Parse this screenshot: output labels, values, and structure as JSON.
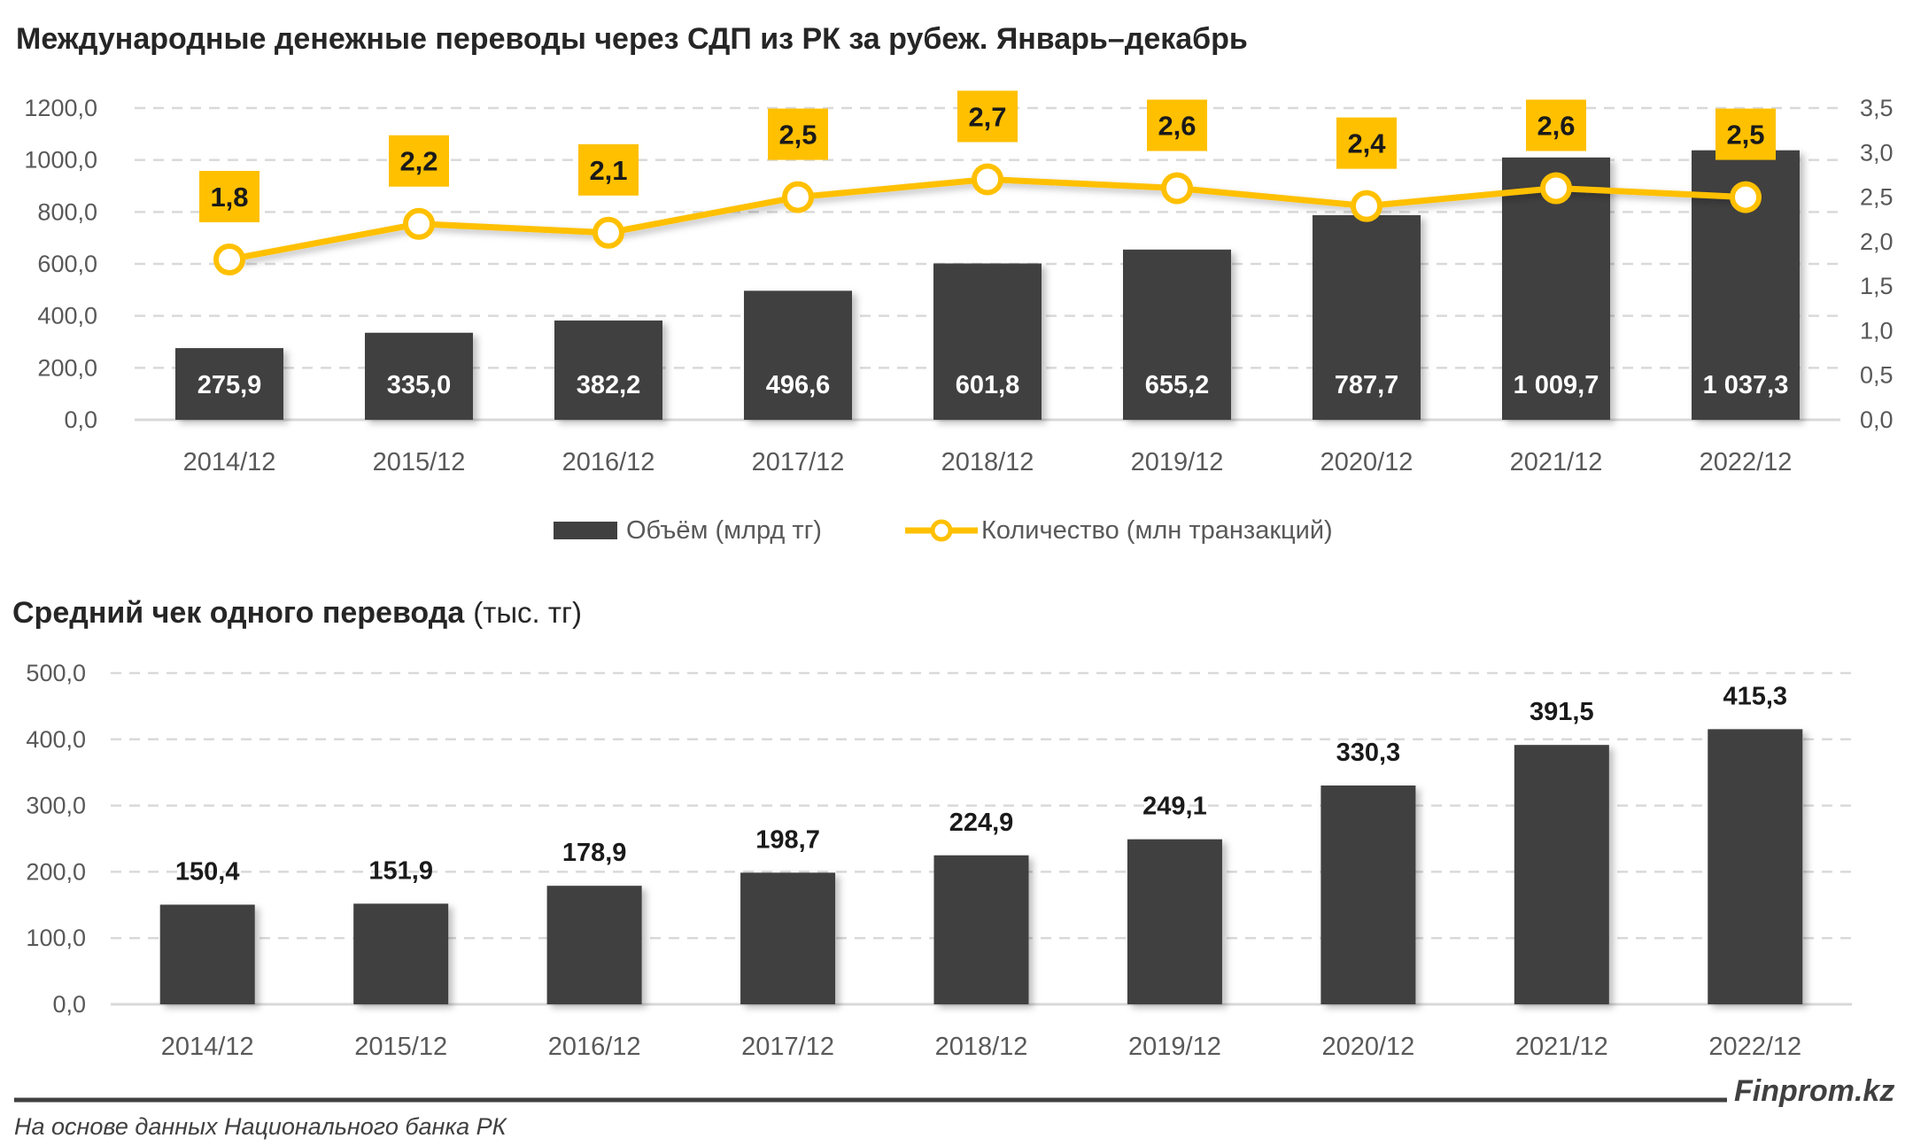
{
  "colors": {
    "bar": "#404040",
    "line": "#FFC000",
    "grid": "#d9d9d9",
    "text": "#595959"
  },
  "chart_data": [
    {
      "type": "bar+line",
      "title": "Международные денежные переводы через СДП из РК за рубеж. Январь–декабрь",
      "categories": [
        "2014/12",
        "2015/12",
        "2016/12",
        "2017/12",
        "2018/12",
        "2019/12",
        "2020/12",
        "2021/12",
        "2022/12"
      ],
      "series": [
        {
          "name": "Объём (млрд тг)",
          "type": "bar",
          "axis": "left",
          "values": [
            275.9,
            335.0,
            382.2,
            496.6,
            601.8,
            655.2,
            787.7,
            1009.7,
            1037.3
          ],
          "labels": [
            "275,9",
            "335,0",
            "382,2",
            "496,6",
            "601,8",
            "655,2",
            "787,7",
            "1 009,7",
            "1 037,3"
          ]
        },
        {
          "name": "Количество (млн транзакций)",
          "type": "line",
          "axis": "right",
          "values": [
            1.8,
            2.2,
            2.1,
            2.5,
            2.7,
            2.6,
            2.4,
            2.6,
            2.5
          ],
          "labels": [
            "1,8",
            "2,2",
            "2,1",
            "2,5",
            "2,7",
            "2,6",
            "2,4",
            "2,6",
            "2,5"
          ]
        }
      ],
      "ylim": [
        0,
        1200
      ],
      "yticks": [
        "0,0",
        "200,0",
        "400,0",
        "600,0",
        "800,0",
        "1000,0",
        "1200,0"
      ],
      "y2lim": [
        0,
        3.5
      ],
      "y2ticks": [
        "0,0",
        "0,5",
        "1,0",
        "1,5",
        "2,0",
        "2,5",
        "3,0",
        "3,5"
      ],
      "grid": true,
      "legend": "bottom"
    },
    {
      "type": "bar",
      "title": "Средний чек одного перевода",
      "title_unit": "(тыс. тг)",
      "categories": [
        "2014/12",
        "2015/12",
        "2016/12",
        "2017/12",
        "2018/12",
        "2019/12",
        "2020/12",
        "2021/12",
        "2022/12"
      ],
      "values": [
        150.4,
        151.9,
        178.9,
        198.7,
        224.9,
        249.1,
        330.3,
        391.5,
        415.3
      ],
      "labels": [
        "150,4",
        "151,9",
        "178,9",
        "198,7",
        "224,9",
        "249,1",
        "330,3",
        "391,5",
        "415,3"
      ],
      "ylim": [
        0,
        500
      ],
      "yticks": [
        "0,0",
        "100,0",
        "200,0",
        "300,0",
        "400,0",
        "500,0"
      ],
      "grid": true
    }
  ],
  "footer": {
    "source": "На основе данных Национального банка РК",
    "brand": "Finprom.kz"
  }
}
